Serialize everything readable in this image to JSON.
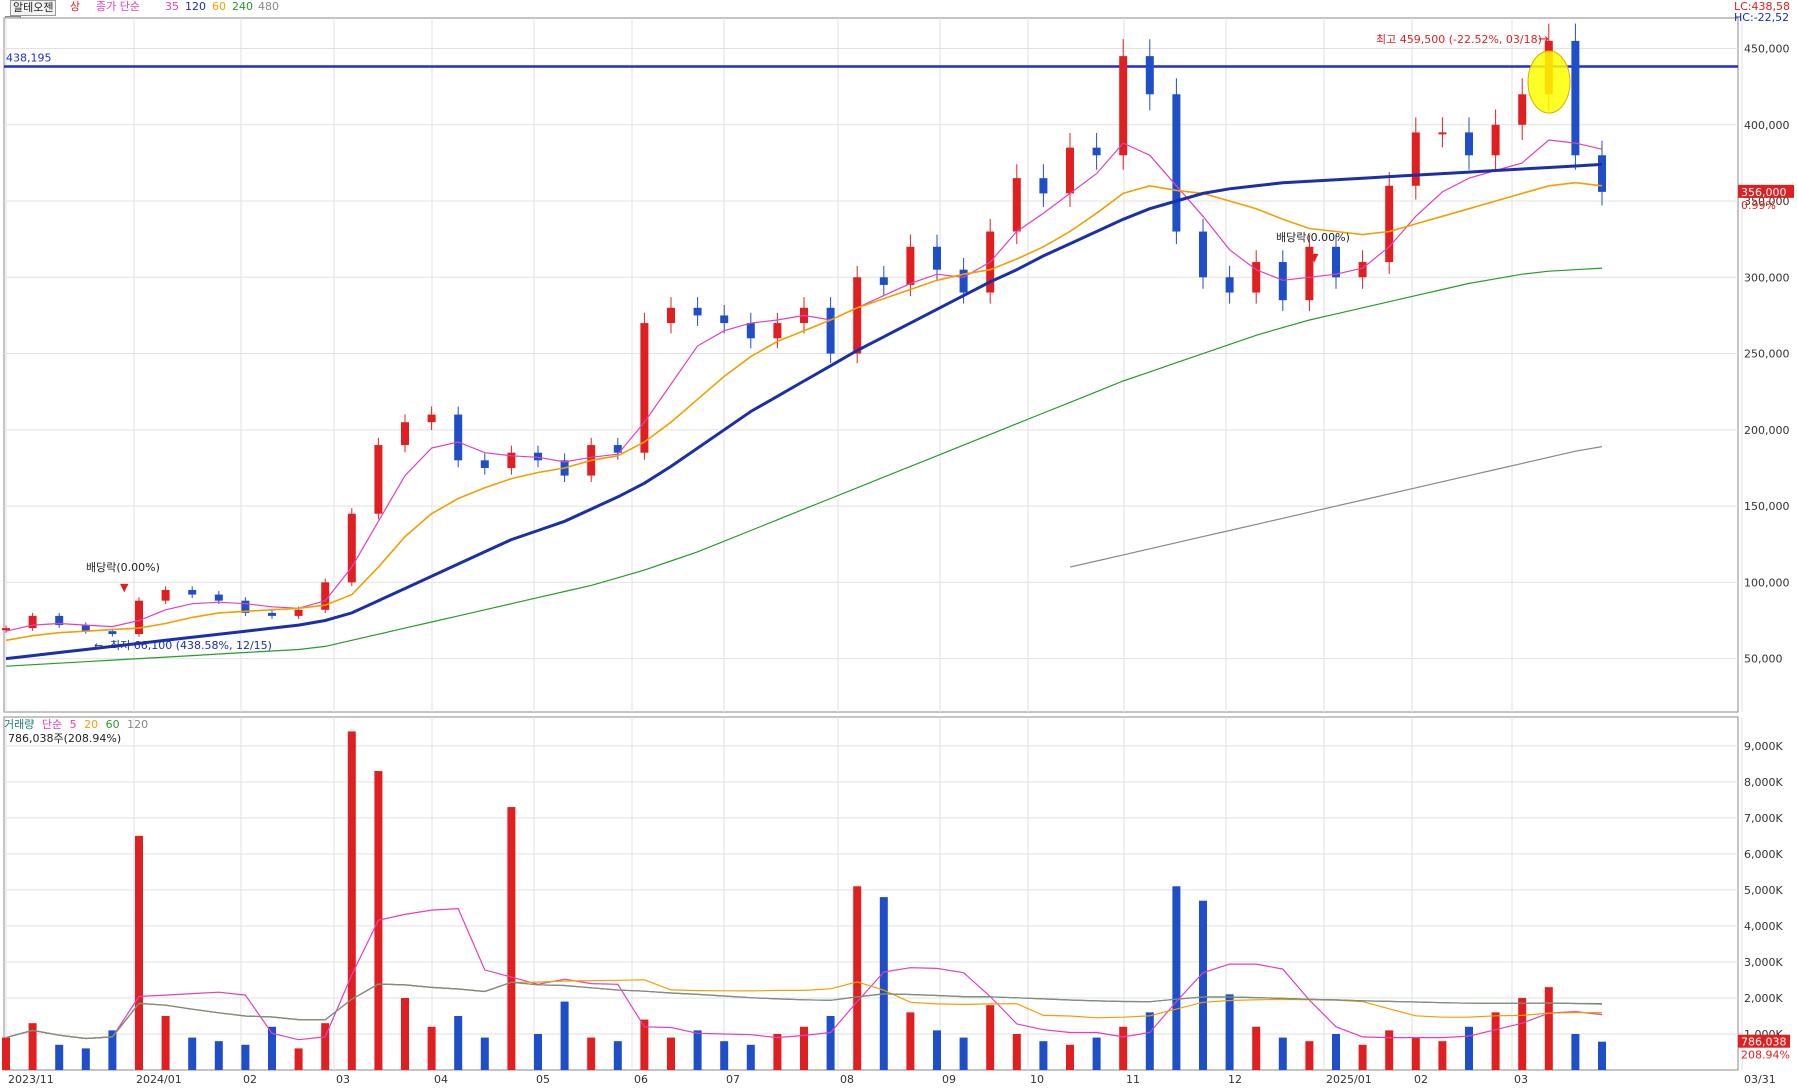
{
  "toolbar": {
    "stock_name": "알테오젠",
    "status": "상",
    "ma_title": "종가 단순",
    "ma_periods": [
      "35",
      "120",
      "60",
      "240",
      "480"
    ]
  },
  "colors": {
    "up": "#e02020",
    "down": "#1f4fc8",
    "ma35": "#e040c0",
    "ma60": "#f0a000",
    "ma120": "#1a2fa8",
    "ma240": "#2a9a2a",
    "ma480": "#888888",
    "hline": "#1f2fd0"
  },
  "top_right": {
    "lc": "LC:438,58",
    "hc": "HC:-22,52"
  },
  "price_panel": {
    "hline_label": "438,195",
    "hline_value": 438195,
    "current_price": "356,000",
    "current_change": "0.99%",
    "high_label": "최고 459,500 (-22.52%, 03/18)",
    "low_label": "최저 66,100 (438.58%, 12/15)",
    "dividend_labels": [
      "배당락(0.00%)",
      "배당락(0.00%)"
    ]
  },
  "volume_panel": {
    "title": "거래량",
    "ma_title": "단순",
    "ma_periods": [
      "5",
      "20",
      "60",
      "120"
    ],
    "current_volume": "786,038주(208.94%)",
    "current_box": "786,038",
    "current_pct": "208.94%"
  },
  "chart_data": [
    {
      "type": "line",
      "name": "price",
      "x_labels": [
        "2023/11",
        "2024/01",
        "02",
        "03",
        "04",
        "05",
        "06",
        "07",
        "08",
        "09",
        "10",
        "11",
        "12",
        "2025/01",
        "02",
        "03",
        "03/31"
      ],
      "y_ticks": [
        "450,000",
        "400,000",
        "350,000",
        "300,000",
        "250,000",
        "200,000",
        "150,000",
        "100,000",
        "50,000"
      ],
      "ylim": [
        15000,
        470000
      ],
      "series": [
        {
          "name": "종가",
          "values": [
            70000,
            78000,
            72000,
            68000,
            66100,
            88000,
            95000,
            92000,
            88000,
            80000,
            78000,
            82000,
            100000,
            145000,
            190000,
            205000,
            210000,
            180000,
            175000,
            185000,
            180000,
            170000,
            190000,
            185000,
            270000,
            280000,
            275000,
            270000,
            260000,
            270000,
            280000,
            250000,
            300000,
            295000,
            320000,
            305000,
            290000,
            330000,
            365000,
            355000,
            385000,
            380000,
            445000,
            420000,
            330000,
            300000,
            290000,
            310000,
            285000,
            320000,
            300000,
            310000,
            360000,
            395000,
            395000,
            380000,
            400000,
            420000,
            455000,
            380000,
            356000
          ]
        },
        {
          "name": "35",
          "values": [
            68000,
            72000,
            73000,
            72000,
            71000,
            75000,
            82000,
            86000,
            87000,
            86000,
            84000,
            83000,
            88000,
            110000,
            140000,
            170000,
            188000,
            192000,
            185000,
            183000,
            182000,
            179000,
            182000,
            184000,
            205000,
            230000,
            255000,
            265000,
            270000,
            272000,
            275000,
            272000,
            280000,
            288000,
            296000,
            302000,
            300000,
            310000,
            330000,
            342000,
            355000,
            368000,
            388000,
            380000,
            360000,
            340000,
            318000,
            305000,
            298000,
            300000,
            302000,
            306000,
            320000,
            340000,
            356000,
            365000,
            370000,
            375000,
            390000,
            388000,
            384000
          ]
        },
        {
          "name": "60",
          "values": [
            62000,
            65000,
            67000,
            68000,
            69000,
            70000,
            73000,
            77000,
            80000,
            81000,
            82000,
            83000,
            85000,
            92000,
            110000,
            130000,
            145000,
            155000,
            162000,
            168000,
            172000,
            175000,
            180000,
            183000,
            192000,
            205000,
            220000,
            235000,
            248000,
            258000,
            265000,
            272000,
            280000,
            286000,
            292000,
            298000,
            302000,
            305000,
            312000,
            320000,
            330000,
            342000,
            355000,
            360000,
            357000,
            355000,
            350000,
            345000,
            338000,
            332000,
            330000,
            328000,
            330000,
            335000,
            340000,
            345000,
            350000,
            355000,
            360000,
            362000,
            360000
          ]
        },
        {
          "name": "120",
          "values": [
            50000,
            52000,
            54000,
            56000,
            58000,
            60000,
            62000,
            64000,
            66000,
            68000,
            70000,
            72000,
            75000,
            80000,
            88000,
            96000,
            104000,
            112000,
            120000,
            128000,
            134000,
            140000,
            148000,
            156000,
            165000,
            176000,
            188000,
            200000,
            212000,
            222000,
            232000,
            242000,
            252000,
            261000,
            270000,
            279000,
            288000,
            297000,
            305000,
            314000,
            322000,
            330000,
            338000,
            345000,
            350000,
            355000,
            358000,
            360000,
            362000,
            363000,
            364000,
            365000,
            366000,
            367000,
            368000,
            369000,
            370000,
            371000,
            372000,
            373000,
            374000
          ]
        },
        {
          "name": "240",
          "values": [
            45000,
            46000,
            47000,
            48000,
            49000,
            50000,
            51000,
            52000,
            53000,
            54000,
            55000,
            56000,
            58000,
            62000,
            66000,
            70000,
            74000,
            78000,
            82000,
            86000,
            90000,
            94000,
            98000,
            103000,
            108000,
            114000,
            120000,
            127000,
            134000,
            141000,
            148000,
            155000,
            162000,
            169000,
            176000,
            183000,
            190000,
            197000,
            204000,
            211000,
            218000,
            225000,
            232000,
            238000,
            244000,
            250000,
            256000,
            262000,
            267000,
            272000,
            276000,
            280000,
            284000,
            288000,
            292000,
            296000,
            299000,
            302000,
            304000,
            305000,
            306000
          ]
        },
        {
          "name": "480",
          "values": [
            null,
            null,
            null,
            null,
            null,
            null,
            null,
            null,
            null,
            null,
            null,
            null,
            null,
            null,
            null,
            null,
            null,
            null,
            null,
            null,
            null,
            null,
            null,
            null,
            null,
            null,
            null,
            null,
            null,
            null,
            null,
            null,
            null,
            null,
            null,
            null,
            null,
            null,
            null,
            null,
            110000,
            114000,
            118000,
            122000,
            126000,
            130000,
            134000,
            138000,
            142000,
            146000,
            150000,
            154000,
            158000,
            162000,
            166000,
            170000,
            174000,
            178000,
            182000,
            186000,
            189000
          ]
        }
      ]
    },
    {
      "type": "bar",
      "name": "volume",
      "y_ticks": [
        "9,000K",
        "8,000K",
        "7,000K",
        "6,000K",
        "5,000K",
        "4,000K",
        "3,000K",
        "2,000K",
        "1,000K"
      ],
      "ylim": [
        0,
        9800
      ],
      "values": [
        900,
        1300,
        700,
        600,
        1100,
        6500,
        1500,
        900,
        800,
        700,
        1200,
        600,
        1300,
        9400,
        8300,
        2000,
        1200,
        1500,
        900,
        7300,
        1000,
        1900,
        900,
        800,
        1400,
        900,
        1100,
        800,
        700,
        1000,
        1200,
        1500,
        5100,
        4800,
        1600,
        1100,
        900,
        1800,
        1000,
        800,
        700,
        900,
        1200,
        1600,
        5100,
        4700,
        2100,
        1200,
        900,
        800,
        1000,
        700,
        1100,
        900,
        800,
        1200,
        1600,
        2000,
        2300,
        1000,
        786
      ]
    }
  ]
}
